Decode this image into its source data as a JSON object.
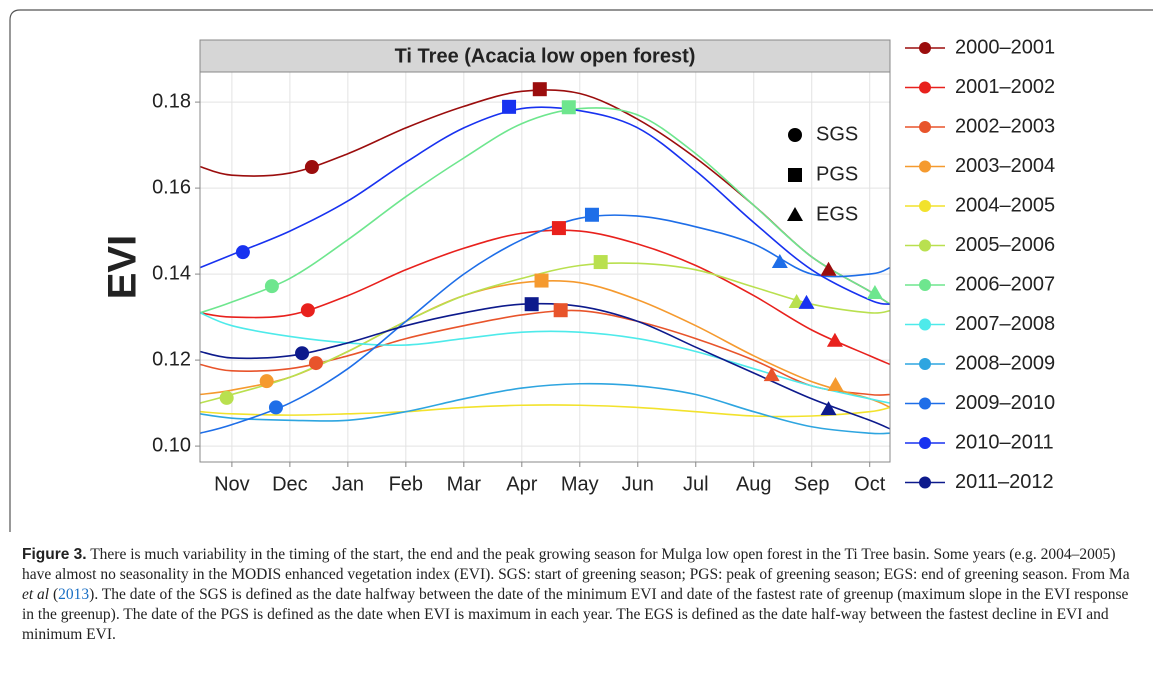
{
  "chart_data": {
    "type": "line",
    "title": "Ti Tree (Acacia low open forest)",
    "y_label": "EVI",
    "x": [
      -0.55,
      0,
      1,
      2,
      3,
      4,
      5,
      6,
      7,
      8,
      9,
      10,
      11,
      11.35
    ],
    "xlim": [
      -0.55,
      11.35
    ],
    "xticks": [
      {
        "value": 0,
        "label": "Nov"
      },
      {
        "value": 1,
        "label": "Dec"
      },
      {
        "value": 2,
        "label": "Jan"
      },
      {
        "value": 3,
        "label": "Feb"
      },
      {
        "value": 4,
        "label": "Mar"
      },
      {
        "value": 5,
        "label": "Apr"
      },
      {
        "value": 6,
        "label": "May"
      },
      {
        "value": 7,
        "label": "Jun"
      },
      {
        "value": 8,
        "label": "Jul"
      },
      {
        "value": 9,
        "label": "Aug"
      },
      {
        "value": 10,
        "label": "Sep"
      },
      {
        "value": 11,
        "label": "Oct"
      }
    ],
    "ylim": [
      0.0963,
      0.187
    ],
    "yticks": [
      {
        "value": 0.1,
        "label": "0.10"
      },
      0.12,
      0.14,
      0.16,
      0.18
    ],
    "grid": true,
    "shape_legend": [
      "SGS",
      "PGS",
      "EGS"
    ],
    "series": [
      {
        "name": "2000–2001",
        "color": "#9b0d0d",
        "values": [
          0.165,
          0.163,
          0.1635,
          0.168,
          0.174,
          0.179,
          0.1825,
          0.182,
          0.176,
          0.167,
          0.156,
          0.144,
          0.136,
          0.133
        ],
        "sgs": {
          "x": 1.38,
          "y": 0.1649
        },
        "pgs": {
          "x": 5.31,
          "y": 0.183
        },
        "egs": {
          "x": 10.29,
          "y": 0.141
        }
      },
      {
        "name": "2001–2002",
        "color": "#e8211d",
        "values": [
          0.131,
          0.13,
          0.1305,
          0.135,
          0.141,
          0.146,
          0.1495,
          0.15,
          0.147,
          0.142,
          0.135,
          0.127,
          0.121,
          0.119
        ],
        "sgs": {
          "x": 1.31,
          "y": 0.1316
        },
        "pgs": {
          "x": 5.64,
          "y": 0.1507
        },
        "egs": {
          "x": 10.4,
          "y": 0.1245
        }
      },
      {
        "name": "2002–2003",
        "color": "#e8542b",
        "values": [
          0.119,
          0.1175,
          0.118,
          0.121,
          0.125,
          0.128,
          0.1305,
          0.1315,
          0.129,
          0.125,
          0.12,
          0.114,
          0.112,
          0.112
        ],
        "sgs": {
          "x": 1.45,
          "y": 0.1193
        },
        "pgs": {
          "x": 5.67,
          "y": 0.1316
        },
        "egs": {
          "x": 9.31,
          "y": 0.1165
        }
      },
      {
        "name": "2003–2004",
        "color": "#f59a2f",
        "values": [
          0.112,
          0.113,
          0.116,
          0.122,
          0.129,
          0.135,
          0.138,
          0.138,
          0.134,
          0.128,
          0.121,
          0.115,
          0.111,
          0.109
        ],
        "sgs": {
          "x": 0.6,
          "y": 0.1151
        },
        "pgs": {
          "x": 5.34,
          "y": 0.1385
        },
        "egs": {
          "x": 10.41,
          "y": 0.1142
        }
      },
      {
        "name": "2004–2005",
        "color": "#f2e22c",
        "values": [
          0.108,
          0.1075,
          0.1072,
          0.1075,
          0.108,
          0.109,
          0.1095,
          0.1095,
          0.109,
          0.108,
          0.107,
          0.107,
          0.108,
          0.109
        ]
      },
      {
        "name": "2005–2006",
        "color": "#b9e04f",
        "values": [
          0.11,
          0.112,
          0.116,
          0.122,
          0.129,
          0.135,
          0.139,
          0.142,
          0.1425,
          0.141,
          0.137,
          0.133,
          0.131,
          0.1315
        ],
        "sgs": {
          "x": -0.09,
          "y": 0.1112
        },
        "pgs": {
          "x": 6.36,
          "y": 0.1428
        },
        "egs": {
          "x": 9.74,
          "y": 0.1335
        }
      },
      {
        "name": "2006–2007",
        "color": "#6ee68e",
        "values": [
          0.131,
          0.1335,
          0.139,
          0.148,
          0.158,
          0.167,
          0.175,
          0.1785,
          0.177,
          0.168,
          0.156,
          0.144,
          0.136,
          0.133
        ],
        "sgs": {
          "x": 0.69,
          "y": 0.1372
        },
        "pgs": {
          "x": 5.81,
          "y": 0.1788
        },
        "egs": {
          "x": 11.09,
          "y": 0.1356
        }
      },
      {
        "name": "2007–2008",
        "color": "#4eeaea",
        "values": [
          0.131,
          0.128,
          0.1255,
          0.124,
          0.1235,
          0.125,
          0.1265,
          0.1265,
          0.125,
          0.122,
          0.118,
          0.114,
          0.111,
          0.11
        ]
      },
      {
        "name": "2008–2009",
        "color": "#2ea5e0",
        "values": [
          0.1075,
          0.1065,
          0.106,
          0.106,
          0.108,
          0.111,
          0.1135,
          0.1145,
          0.114,
          0.112,
          0.108,
          0.1045,
          0.103,
          0.103
        ]
      },
      {
        "name": "2009–2010",
        "color": "#1e6ee8",
        "values": [
          0.103,
          0.105,
          0.11,
          0.118,
          0.129,
          0.14,
          0.148,
          0.153,
          0.1535,
          0.151,
          0.147,
          0.14,
          0.14,
          0.1415
        ],
        "sgs": {
          "x": 0.76,
          "y": 0.109
        },
        "pgs": {
          "x": 6.21,
          "y": 0.1538
        },
        "egs": {
          "x": 9.45,
          "y": 0.1428
        }
      },
      {
        "name": "2010–2011",
        "color": "#1832f0",
        "values": [
          0.1415,
          0.1445,
          0.15,
          0.157,
          0.166,
          0.174,
          0.1785,
          0.178,
          0.174,
          0.164,
          0.152,
          0.141,
          0.134,
          0.133
        ],
        "sgs": {
          "x": 0.19,
          "y": 0.1451
        },
        "pgs": {
          "x": 4.78,
          "y": 0.1789
        },
        "egs": {
          "x": 9.91,
          "y": 0.1333
        }
      },
      {
        "name": "2011–2012",
        "color": "#0d1a8c",
        "values": [
          0.122,
          0.1205,
          0.121,
          0.124,
          0.128,
          0.131,
          0.133,
          0.1325,
          0.129,
          0.123,
          0.117,
          0.111,
          0.106,
          0.104
        ],
        "sgs": {
          "x": 1.21,
          "y": 0.1216
        },
        "pgs": {
          "x": 5.17,
          "y": 0.133
        },
        "egs": {
          "x": 10.29,
          "y": 0.1086
        }
      }
    ]
  },
  "caption": {
    "label": "Figure 3.",
    "text_before": " There is much variability in the timing of the start, the end and the peak growing season for Mulga low open forest in the Ti Tree basin. Some years (e.g. 2004–2005) have almost no seasonality in the MODIS enhanced vegetation index (EVI). SGS: start of greening season; PGS: peak of greening season; EGS: end of greening season. From Ma ",
    "italic": "et al",
    "text_mid": " (",
    "link": "2013",
    "text_end": "). The date of the SGS is defined as the date halfway between the date of the minimum EVI and date of the fastest rate of greenup (maximum slope in the EVI response in the greenup). The date of the PGS is defined as the date when EVI is maximum in each year. The EGS is defined as the date half-way between the fastest decline in EVI and minimum EVI."
  }
}
